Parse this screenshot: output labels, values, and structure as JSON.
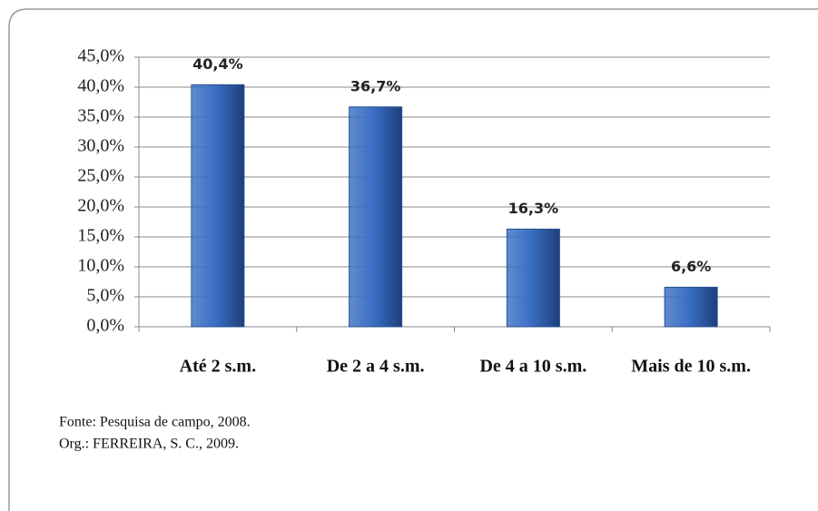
{
  "chart_data": {
    "type": "bar",
    "categories": [
      "Até 2 s.m.",
      "De 2 a 4 s.m.",
      "De 4 a 10 s.m.",
      "Mais de 10 s.m."
    ],
    "values": [
      40.4,
      36.7,
      16.3,
      6.6
    ],
    "value_labels": [
      "40,4%",
      "36,7%",
      "16,3%",
      "6,6%"
    ],
    "color": "#3a6fc4",
    "ylim": [
      0,
      45
    ],
    "yticks": [
      {
        "value": 0,
        "label": "0,0%"
      },
      {
        "value": 5,
        "label": "5,0%"
      },
      {
        "value": 10,
        "label": "10,0%"
      },
      {
        "value": 15,
        "label": "15,0%"
      },
      {
        "value": 20,
        "label": "20,0%"
      },
      {
        "value": 25,
        "label": "25,0%"
      },
      {
        "value": 30,
        "label": "30,0%"
      },
      {
        "value": 35,
        "label": "35,0%"
      },
      {
        "value": 40,
        "label": "40,0%"
      },
      {
        "value": 45,
        "label": "45,0%"
      }
    ],
    "grid": true,
    "notes": [
      "Fonte: Pesquisa de campo, 2008.",
      "Org.: FERREIRA, S. C., 2009."
    ]
  }
}
